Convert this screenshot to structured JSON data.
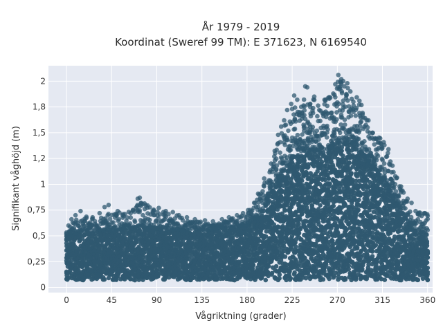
{
  "chart_data": {
    "type": "scatter",
    "title_line1": "År 1979 - 2019",
    "title_line2": "Koordinat (Sweref 99 TM): E 371623, N 6169540",
    "xlabel": "Vågriktning (grader)",
    "ylabel": "Signifikant våghöjd (m)",
    "xlim": [
      -18,
      365
    ],
    "ylim": [
      -0.05,
      2.15
    ],
    "x_ticks": [
      {
        "value": 0,
        "label": "0"
      },
      {
        "value": 45,
        "label": "45"
      },
      {
        "value": 90,
        "label": "90"
      },
      {
        "value": 135,
        "label": "135"
      },
      {
        "value": 180,
        "label": "180"
      },
      {
        "value": 225,
        "label": "225"
      },
      {
        "value": 270,
        "label": "270"
      },
      {
        "value": 315,
        "label": "315"
      },
      {
        "value": 360,
        "label": "360"
      }
    ],
    "y_ticks": [
      {
        "value": 0,
        "label": "0"
      },
      {
        "value": 0.25,
        "label": "0,25"
      },
      {
        "value": 0.5,
        "label": "0,5"
      },
      {
        "value": 0.75,
        "label": "0,75"
      },
      {
        "value": 1.0,
        "label": "1"
      },
      {
        "value": 1.25,
        "label": "1,2"
      },
      {
        "value": 1.5,
        "label": "1,5"
      },
      {
        "value": 1.75,
        "label": "1,8"
      },
      {
        "value": 2.0,
        "label": "2"
      }
    ],
    "grid": true,
    "colors": {
      "background": "#e5e9f2",
      "grid": "#ffffff",
      "marker": "#2f5870"
    },
    "upper_envelope": [
      [
        0,
        0.58
      ],
      [
        10,
        0.68
      ],
      [
        20,
        0.72
      ],
      [
        30,
        0.66
      ],
      [
        45,
        0.74
      ],
      [
        60,
        0.72
      ],
      [
        75,
        0.84
      ],
      [
        90,
        0.74
      ],
      [
        105,
        0.72
      ],
      [
        120,
        0.66
      ],
      [
        135,
        0.64
      ],
      [
        150,
        0.62
      ],
      [
        165,
        0.68
      ],
      [
        175,
        0.7
      ],
      [
        185,
        0.78
      ],
      [
        195,
        0.98
      ],
      [
        205,
        1.28
      ],
      [
        215,
        1.52
      ],
      [
        225,
        1.72
      ],
      [
        235,
        1.84
      ],
      [
        245,
        1.88
      ],
      [
        255,
        1.8
      ],
      [
        265,
        1.9
      ],
      [
        272,
        2.05
      ],
      [
        280,
        1.98
      ],
      [
        290,
        1.85
      ],
      [
        300,
        1.65
      ],
      [
        310,
        1.5
      ],
      [
        318,
        1.38
      ],
      [
        325,
        1.2
      ],
      [
        332,
        1.02
      ],
      [
        340,
        0.88
      ],
      [
        350,
        0.74
      ],
      [
        360,
        0.72
      ]
    ],
    "dense_top": [
      [
        0,
        0.5
      ],
      [
        20,
        0.55
      ],
      [
        45,
        0.55
      ],
      [
        75,
        0.58
      ],
      [
        100,
        0.56
      ],
      [
        135,
        0.55
      ],
      [
        160,
        0.58
      ],
      [
        180,
        0.6
      ],
      [
        195,
        0.72
      ],
      [
        205,
        0.95
      ],
      [
        215,
        1.1
      ],
      [
        225,
        1.25
      ],
      [
        240,
        1.35
      ],
      [
        255,
        1.3
      ],
      [
        270,
        1.4
      ],
      [
        285,
        1.4
      ],
      [
        300,
        1.25
      ],
      [
        315,
        1.05
      ],
      [
        325,
        0.9
      ],
      [
        335,
        0.72
      ],
      [
        345,
        0.55
      ],
      [
        360,
        0.5
      ]
    ],
    "outliers": [
      [
        2,
        0.6
      ],
      [
        5,
        0.66
      ],
      [
        9,
        0.7
      ],
      [
        14,
        0.74
      ],
      [
        18,
        0.64
      ],
      [
        26,
        0.68
      ],
      [
        33,
        0.72
      ],
      [
        38,
        0.78
      ],
      [
        42,
        0.8
      ],
      [
        51,
        0.74
      ],
      [
        56,
        0.7
      ],
      [
        64,
        0.72
      ],
      [
        71,
        0.86
      ],
      [
        73,
        0.87
      ],
      [
        78,
        0.76
      ],
      [
        86,
        0.74
      ],
      [
        92,
        0.77
      ],
      [
        99,
        0.74
      ],
      [
        106,
        0.73
      ],
      [
        112,
        0.7
      ],
      [
        120,
        0.68
      ],
      [
        128,
        0.66
      ],
      [
        138,
        0.65
      ],
      [
        146,
        0.64
      ],
      [
        155,
        0.66
      ],
      [
        162,
        0.68
      ],
      [
        170,
        0.7
      ],
      [
        176,
        0.72
      ],
      [
        183,
        0.75
      ],
      [
        188,
        0.82
      ],
      [
        192,
        0.9
      ],
      [
        197,
        0.98
      ],
      [
        200,
        1.02
      ],
      [
        204,
        1.2
      ],
      [
        208,
        1.3
      ],
      [
        211,
        1.48
      ],
      [
        214,
        1.56
      ],
      [
        217,
        1.62
      ],
      [
        220,
        1.72
      ],
      [
        224,
        1.78
      ],
      [
        227,
        1.86
      ],
      [
        230,
        1.82
      ],
      [
        234,
        1.75
      ],
      [
        238,
        1.95
      ],
      [
        240,
        1.94
      ],
      [
        243,
        1.78
      ],
      [
        247,
        1.85
      ],
      [
        252,
        1.72
      ],
      [
        256,
        1.68
      ],
      [
        260,
        1.76
      ],
      [
        263,
        1.84
      ],
      [
        266,
        1.88
      ],
      [
        268,
        1.97
      ],
      [
        271,
        2.06
      ],
      [
        274,
        2.02
      ],
      [
        277,
        1.95
      ],
      [
        280,
        1.98
      ],
      [
        283,
        1.9
      ],
      [
        286,
        1.8
      ],
      [
        289,
        1.74
      ],
      [
        293,
        1.6
      ],
      [
        297,
        1.56
      ],
      [
        301,
        1.62
      ],
      [
        305,
        1.5
      ],
      [
        309,
        1.44
      ],
      [
        313,
        1.4
      ],
      [
        317,
        1.38
      ],
      [
        321,
        1.34
      ],
      [
        325,
        1.18
      ],
      [
        329,
        1.06
      ],
      [
        332,
        0.98
      ],
      [
        336,
        0.92
      ],
      [
        340,
        0.86
      ],
      [
        344,
        0.82
      ],
      [
        348,
        0.74
      ],
      [
        352,
        0.7
      ],
      [
        357,
        0.72
      ]
    ]
  }
}
